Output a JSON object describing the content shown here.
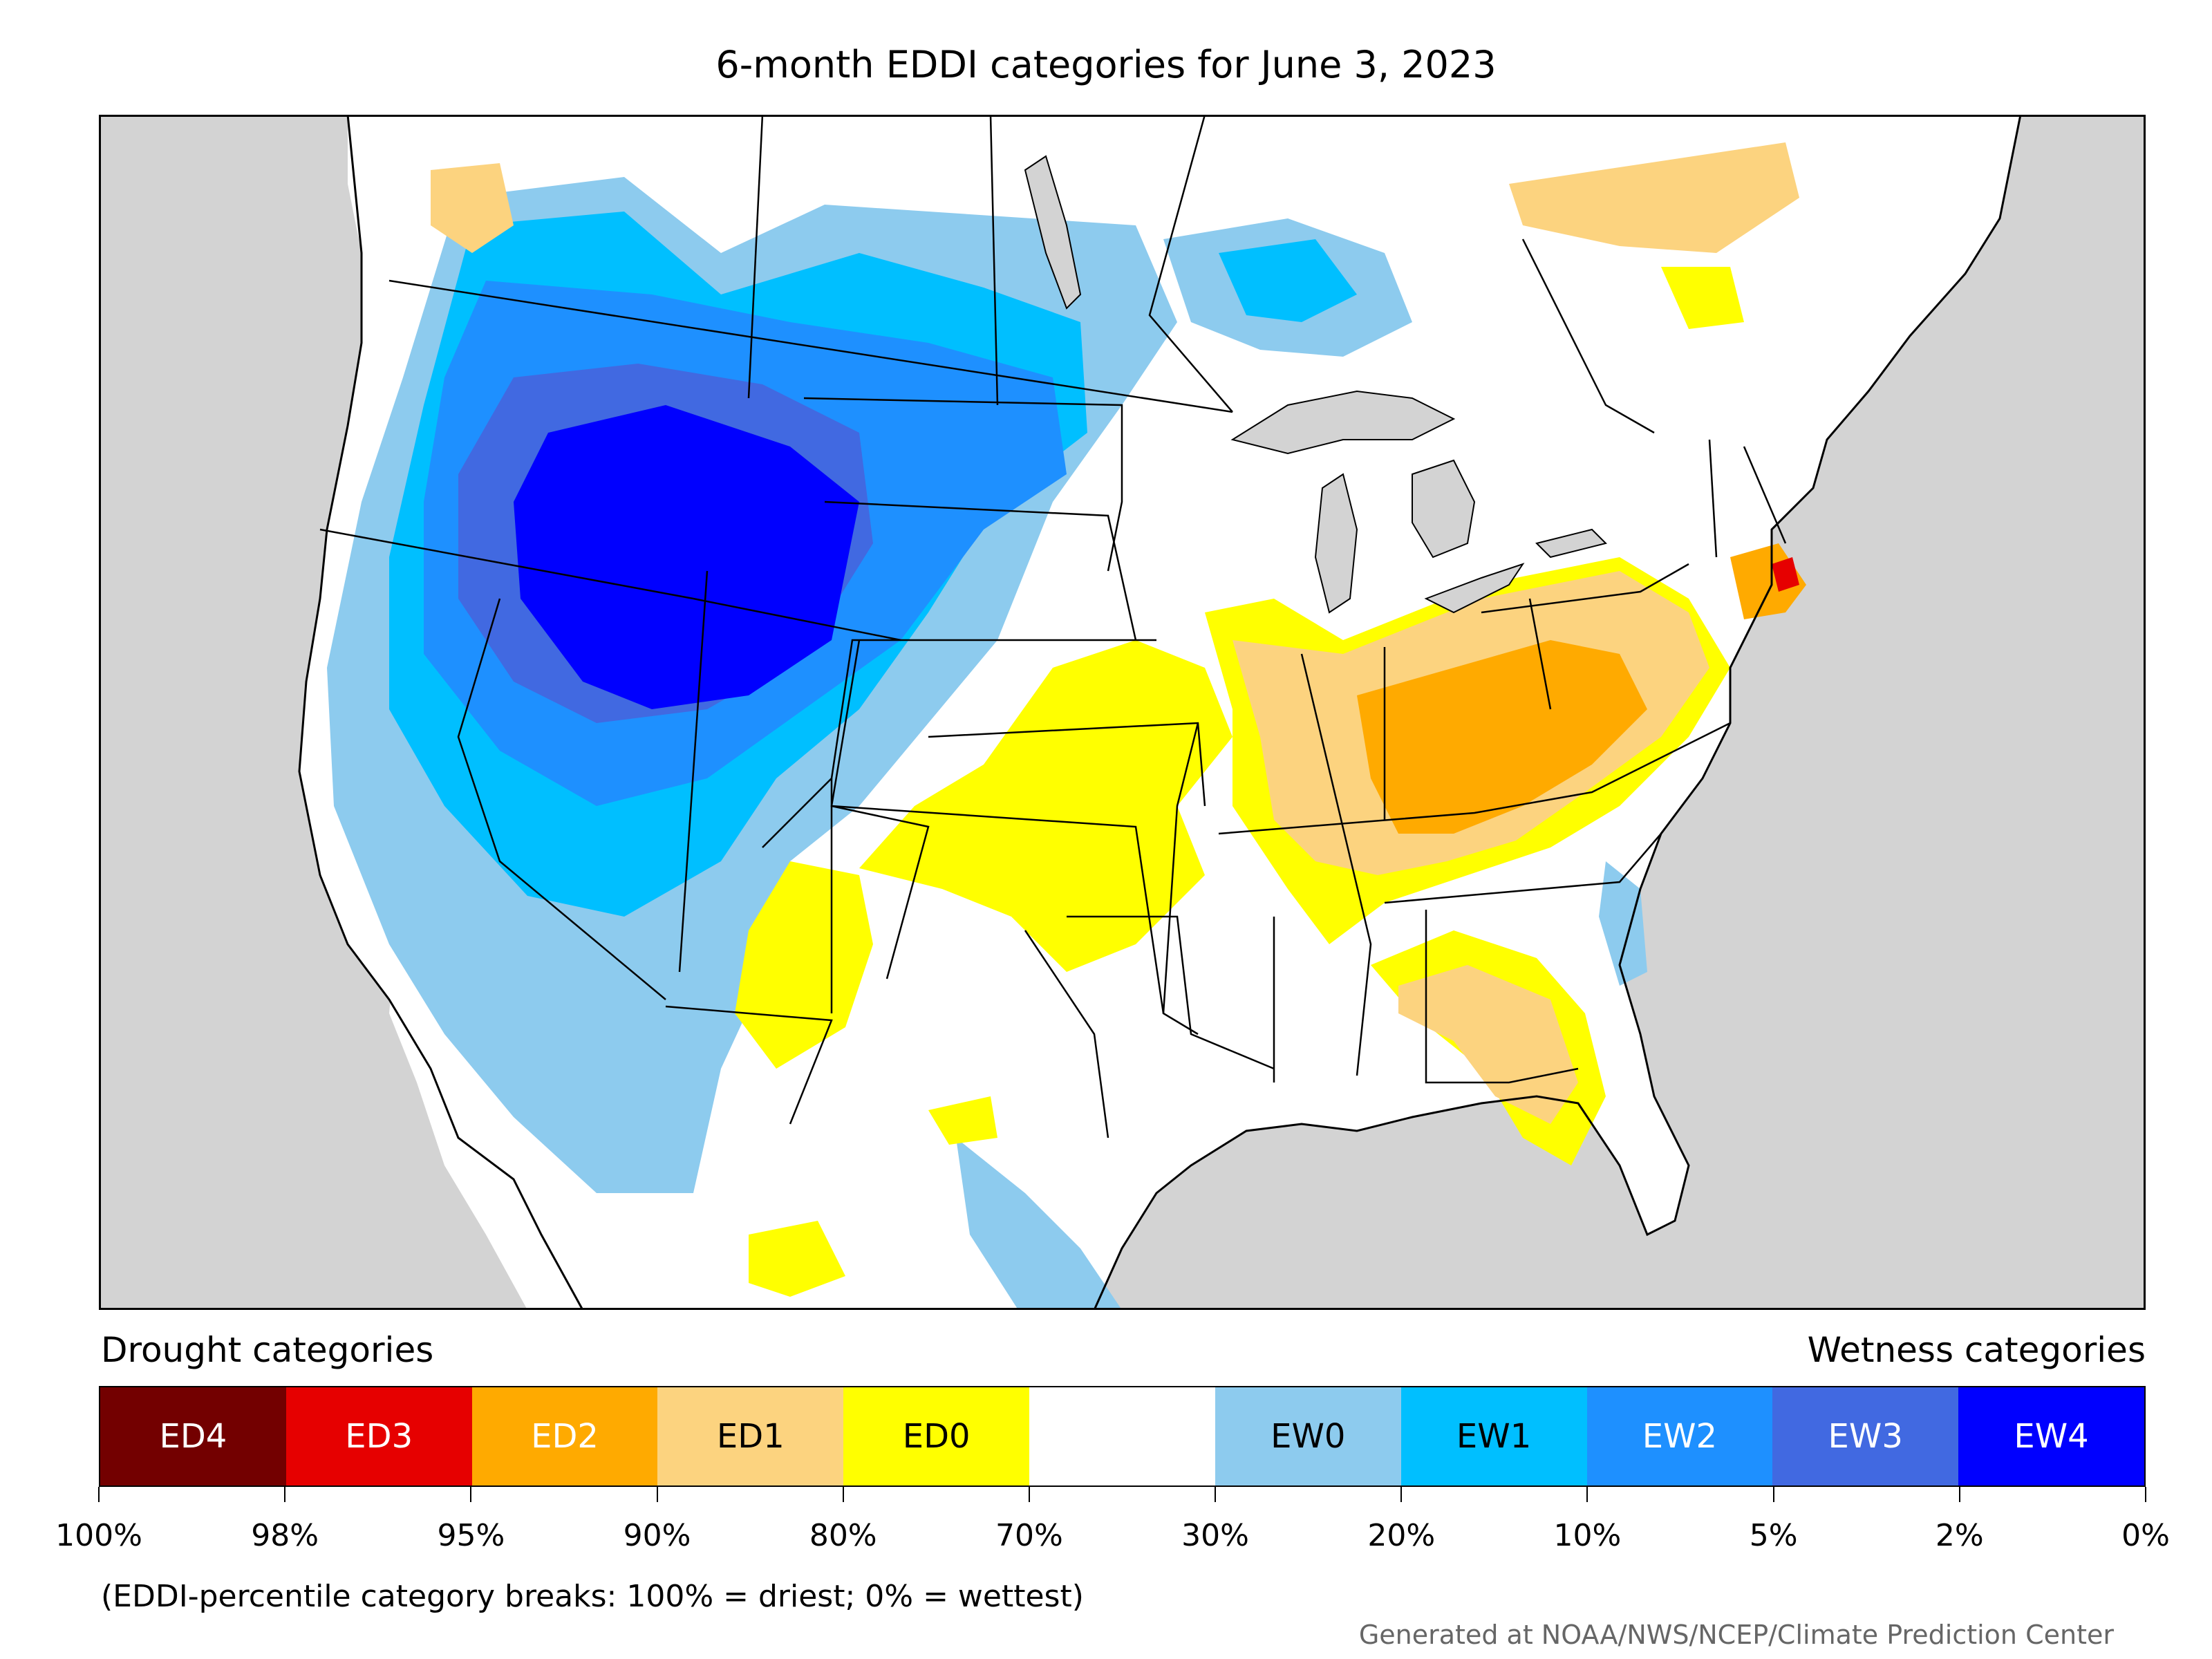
{
  "title": "6-month EDDI categories for June 3, 2023",
  "drought_heading": "Drought categories",
  "wetness_heading": "Wetness categories",
  "categories": [
    {
      "label": "ED4",
      "color": "#730000",
      "text_color": "#ffffff"
    },
    {
      "label": "ED3",
      "color": "#e60000",
      "text_color": "#ffffff"
    },
    {
      "label": "ED2",
      "color": "#ffaa00",
      "text_color": "#ffffff"
    },
    {
      "label": "ED1",
      "color": "#fcd37f",
      "text_color": "#000000"
    },
    {
      "label": "ED0",
      "color": "#ffff00",
      "text_color": "#000000"
    },
    {
      "label": "",
      "color": "#ffffff",
      "text_color": "#000000"
    },
    {
      "label": "EW0",
      "color": "#8dcbee",
      "text_color": "#000000"
    },
    {
      "label": "EW1",
      "color": "#00bfff",
      "text_color": "#000000"
    },
    {
      "label": "EW2",
      "color": "#1e90ff",
      "text_color": "#ffffff"
    },
    {
      "label": "EW3",
      "color": "#4169e1",
      "text_color": "#ffffff"
    },
    {
      "label": "EW4",
      "color": "#0000ff",
      "text_color": "#ffffff"
    }
  ],
  "breaks": [
    "100%",
    "98%",
    "95%",
    "90%",
    "80%",
    "70%",
    "30%",
    "20%",
    "10%",
    "5%",
    "2%",
    "0%"
  ],
  "note": "(EDDI-percentile category breaks: 100% = driest; 0% = wettest)",
  "credit": "Generated at NOAA/NWS/NCEP/Climate Prediction Center",
  "colors": {
    "ocean_land": "#d3d3d3",
    "frame": "#000000",
    "lakes": "#d3d3d3"
  }
}
